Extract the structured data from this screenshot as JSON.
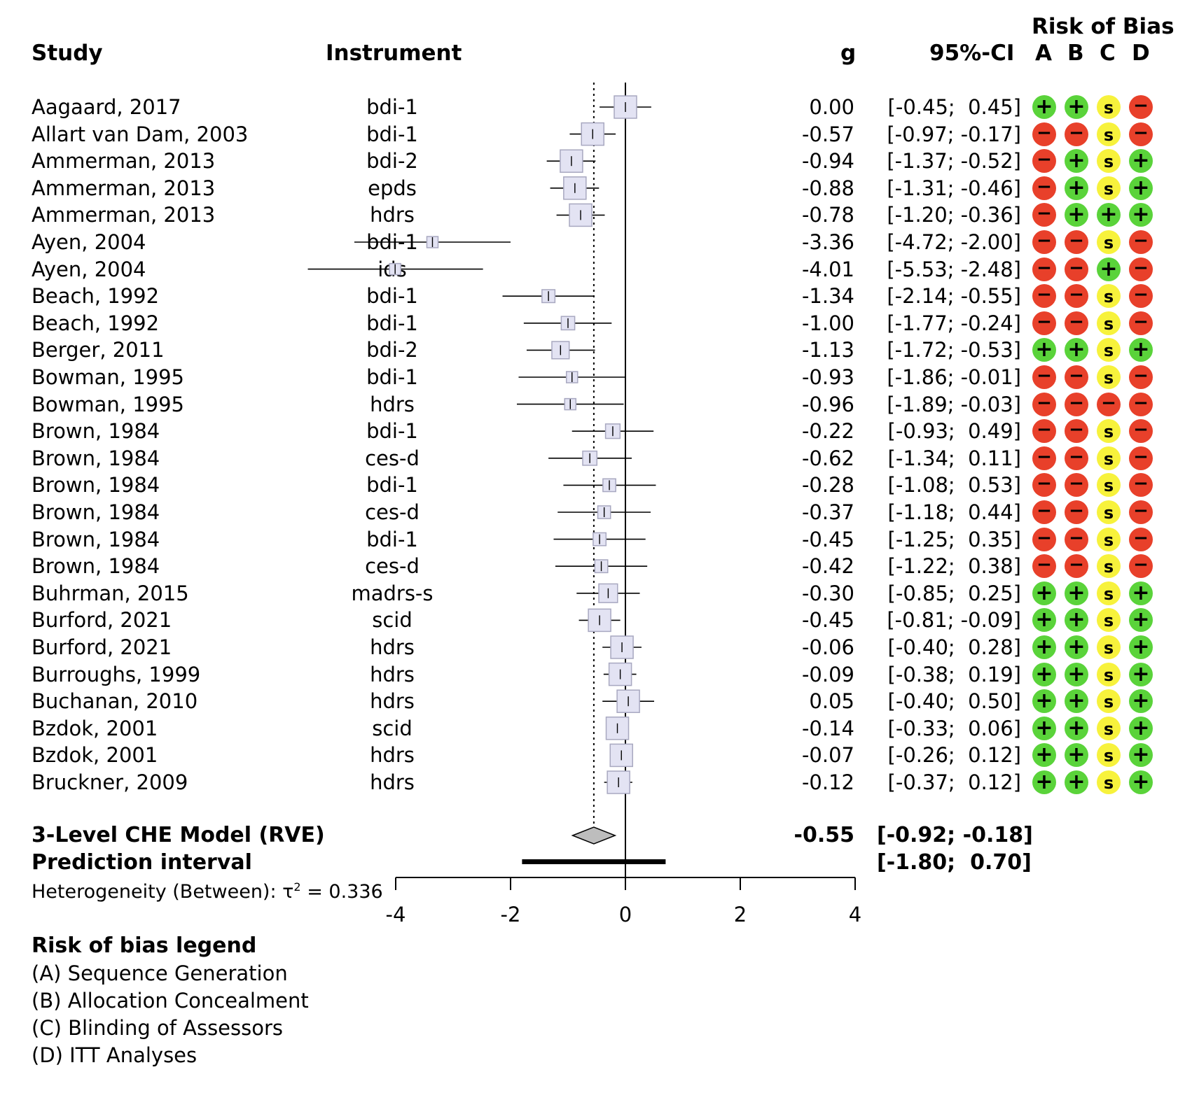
{
  "header": {
    "study": "Study",
    "instrument": "Instrument",
    "g": "g",
    "ci": "95%-CI",
    "rob_title": "Risk of Bias",
    "rob_cols": [
      "A",
      "B",
      "C",
      "D"
    ]
  },
  "chart_data": {
    "type": "forest",
    "xlim": [
      -4,
      4
    ],
    "ticks": [
      -4,
      -2,
      0,
      2,
      4
    ],
    "pooled_estimate": -0.55,
    "rows": [
      {
        "study": "Aagaard, 2017",
        "instrument": "bdi-1",
        "g": "0.00",
        "ci": "[-0.45;  0.45]",
        "est": 0.0,
        "lo": -0.45,
        "hi": 0.45,
        "rob": [
          "+",
          "+",
          "s",
          "-"
        ]
      },
      {
        "study": "Allart van Dam, 2003",
        "instrument": "bdi-1",
        "g": "-0.57",
        "ci": "[-0.97; -0.17]",
        "est": -0.57,
        "lo": -0.97,
        "hi": -0.17,
        "rob": [
          "-",
          "-",
          "s",
          "-"
        ]
      },
      {
        "study": "Ammerman, 2013",
        "instrument": "bdi-2",
        "g": "-0.94",
        "ci": "[-1.37; -0.52]",
        "est": -0.94,
        "lo": -1.37,
        "hi": -0.52,
        "rob": [
          "-",
          "+",
          "s",
          "+"
        ]
      },
      {
        "study": "Ammerman, 2013",
        "instrument": "epds",
        "g": "-0.88",
        "ci": "[-1.31; -0.46]",
        "est": -0.88,
        "lo": -1.31,
        "hi": -0.46,
        "rob": [
          "-",
          "+",
          "s",
          "+"
        ]
      },
      {
        "study": "Ammerman, 2013",
        "instrument": "hdrs",
        "g": "-0.78",
        "ci": "[-1.20; -0.36]",
        "est": -0.78,
        "lo": -1.2,
        "hi": -0.36,
        "rob": [
          "-",
          "+",
          "+",
          "+"
        ]
      },
      {
        "study": "Ayen, 2004",
        "instrument": "bdi-1",
        "g": "-3.36",
        "ci": "[-4.72; -2.00]",
        "est": -3.36,
        "lo": -4.72,
        "hi": -2.0,
        "rob": [
          "-",
          "-",
          "s",
          "-"
        ]
      },
      {
        "study": "Ayen, 2004",
        "instrument": "ids",
        "g": "-4.01",
        "ci": "[-5.53; -2.48]",
        "est": -4.01,
        "lo": -5.53,
        "hi": -2.48,
        "rob": [
          "-",
          "-",
          "+",
          "-"
        ]
      },
      {
        "study": "Beach, 1992",
        "instrument": "bdi-1",
        "g": "-1.34",
        "ci": "[-2.14; -0.55]",
        "est": -1.34,
        "lo": -2.14,
        "hi": -0.55,
        "rob": [
          "-",
          "-",
          "s",
          "-"
        ]
      },
      {
        "study": "Beach, 1992",
        "instrument": "bdi-1",
        "g": "-1.00",
        "ci": "[-1.77; -0.24]",
        "est": -1.0,
        "lo": -1.77,
        "hi": -0.24,
        "rob": [
          "-",
          "-",
          "s",
          "-"
        ]
      },
      {
        "study": "Berger, 2011",
        "instrument": "bdi-2",
        "g": "-1.13",
        "ci": "[-1.72; -0.53]",
        "est": -1.13,
        "lo": -1.72,
        "hi": -0.53,
        "rob": [
          "+",
          "+",
          "s",
          "+"
        ]
      },
      {
        "study": "Bowman, 1995",
        "instrument": "bdi-1",
        "g": "-0.93",
        "ci": "[-1.86; -0.01]",
        "est": -0.93,
        "lo": -1.86,
        "hi": -0.01,
        "rob": [
          "-",
          "-",
          "s",
          "-"
        ]
      },
      {
        "study": "Bowman, 1995",
        "instrument": "hdrs",
        "g": "-0.96",
        "ci": "[-1.89; -0.03]",
        "est": -0.96,
        "lo": -1.89,
        "hi": -0.03,
        "rob": [
          "-",
          "-",
          "-",
          "-"
        ]
      },
      {
        "study": "Brown, 1984",
        "instrument": "bdi-1",
        "g": "-0.22",
        "ci": "[-0.93;  0.49]",
        "est": -0.22,
        "lo": -0.93,
        "hi": 0.49,
        "rob": [
          "-",
          "-",
          "s",
          "-"
        ]
      },
      {
        "study": "Brown, 1984",
        "instrument": "ces-d",
        "g": "-0.62",
        "ci": "[-1.34;  0.11]",
        "est": -0.62,
        "lo": -1.34,
        "hi": 0.11,
        "rob": [
          "-",
          "-",
          "s",
          "-"
        ]
      },
      {
        "study": "Brown, 1984",
        "instrument": "bdi-1",
        "g": "-0.28",
        "ci": "[-1.08;  0.53]",
        "est": -0.28,
        "lo": -1.08,
        "hi": 0.53,
        "rob": [
          "-",
          "-",
          "s",
          "-"
        ]
      },
      {
        "study": "Brown, 1984",
        "instrument": "ces-d",
        "g": "-0.37",
        "ci": "[-1.18;  0.44]",
        "est": -0.37,
        "lo": -1.18,
        "hi": 0.44,
        "rob": [
          "-",
          "-",
          "s",
          "-"
        ]
      },
      {
        "study": "Brown, 1984",
        "instrument": "bdi-1",
        "g": "-0.45",
        "ci": "[-1.25;  0.35]",
        "est": -0.45,
        "lo": -1.25,
        "hi": 0.35,
        "rob": [
          "-",
          "-",
          "s",
          "-"
        ]
      },
      {
        "study": "Brown, 1984",
        "instrument": "ces-d",
        "g": "-0.42",
        "ci": "[-1.22;  0.38]",
        "est": -0.42,
        "lo": -1.22,
        "hi": 0.38,
        "rob": [
          "-",
          "-",
          "s",
          "-"
        ]
      },
      {
        "study": "Buhrman, 2015",
        "instrument": "madrs-s",
        "g": "-0.30",
        "ci": "[-0.85;  0.25]",
        "est": -0.3,
        "lo": -0.85,
        "hi": 0.25,
        "rob": [
          "+",
          "+",
          "s",
          "+"
        ]
      },
      {
        "study": "Burford, 2021",
        "instrument": "scid",
        "g": "-0.45",
        "ci": "[-0.81; -0.09]",
        "est": -0.45,
        "lo": -0.81,
        "hi": -0.09,
        "rob": [
          "+",
          "+",
          "s",
          "+"
        ]
      },
      {
        "study": "Burford, 2021",
        "instrument": "hdrs",
        "g": "-0.06",
        "ci": "[-0.40;  0.28]",
        "est": -0.06,
        "lo": -0.4,
        "hi": 0.28,
        "rob": [
          "+",
          "+",
          "s",
          "+"
        ]
      },
      {
        "study": "Burroughs, 1999",
        "instrument": "hdrs",
        "g": "-0.09",
        "ci": "[-0.38;  0.19]",
        "est": -0.09,
        "lo": -0.38,
        "hi": 0.19,
        "rob": [
          "+",
          "+",
          "s",
          "+"
        ]
      },
      {
        "study": "Buchanan, 2010",
        "instrument": "hdrs",
        "g": "0.05",
        "ci": "[-0.40;  0.50]",
        "est": 0.05,
        "lo": -0.4,
        "hi": 0.5,
        "rob": [
          "+",
          "+",
          "s",
          "+"
        ]
      },
      {
        "study": "Bzdok, 2001",
        "instrument": "scid",
        "g": "-0.14",
        "ci": "[-0.33;  0.06]",
        "est": -0.14,
        "lo": -0.33,
        "hi": 0.06,
        "rob": [
          "+",
          "+",
          "s",
          "+"
        ]
      },
      {
        "study": "Bzdok, 2001",
        "instrument": "hdrs",
        "g": "-0.07",
        "ci": "[-0.26;  0.12]",
        "est": -0.07,
        "lo": -0.26,
        "hi": 0.12,
        "rob": [
          "+",
          "+",
          "s",
          "+"
        ]
      },
      {
        "study": "Bruckner, 2009",
        "instrument": "hdrs",
        "g": "-0.12",
        "ci": "[-0.37;  0.12]",
        "est": -0.12,
        "lo": -0.37,
        "hi": 0.12,
        "rob": [
          "+",
          "+",
          "s",
          "+"
        ]
      }
    ],
    "pooled": {
      "label": "3-Level CHE Model (RVE)",
      "g": "-0.55",
      "ci": "[-0.92; -0.18]",
      "est": -0.55,
      "lo": -0.92,
      "hi": -0.18
    },
    "prediction": {
      "label": "Prediction interval",
      "ci": "[-1.80;  0.70]",
      "lo": -1.8,
      "hi": 0.7
    },
    "heterogeneity": {
      "prefix": "Heterogeneity (Between): ",
      "symbol": "τ",
      "sup": "2",
      "suffix": " = 0.336"
    }
  },
  "legend": {
    "title": "Risk of bias legend",
    "items": [
      "(A) Sequence Generation",
      "(B) Allocation Concealment",
      "(C) Blinding of Assessors",
      "(D) ITT Analyses"
    ]
  },
  "colors": {
    "plus": "#5ad33a",
    "minus": "#e8402a",
    "s": "#f7f23c",
    "box_fill": "#e3e3f3",
    "box_stroke": "#a8a8c0"
  }
}
